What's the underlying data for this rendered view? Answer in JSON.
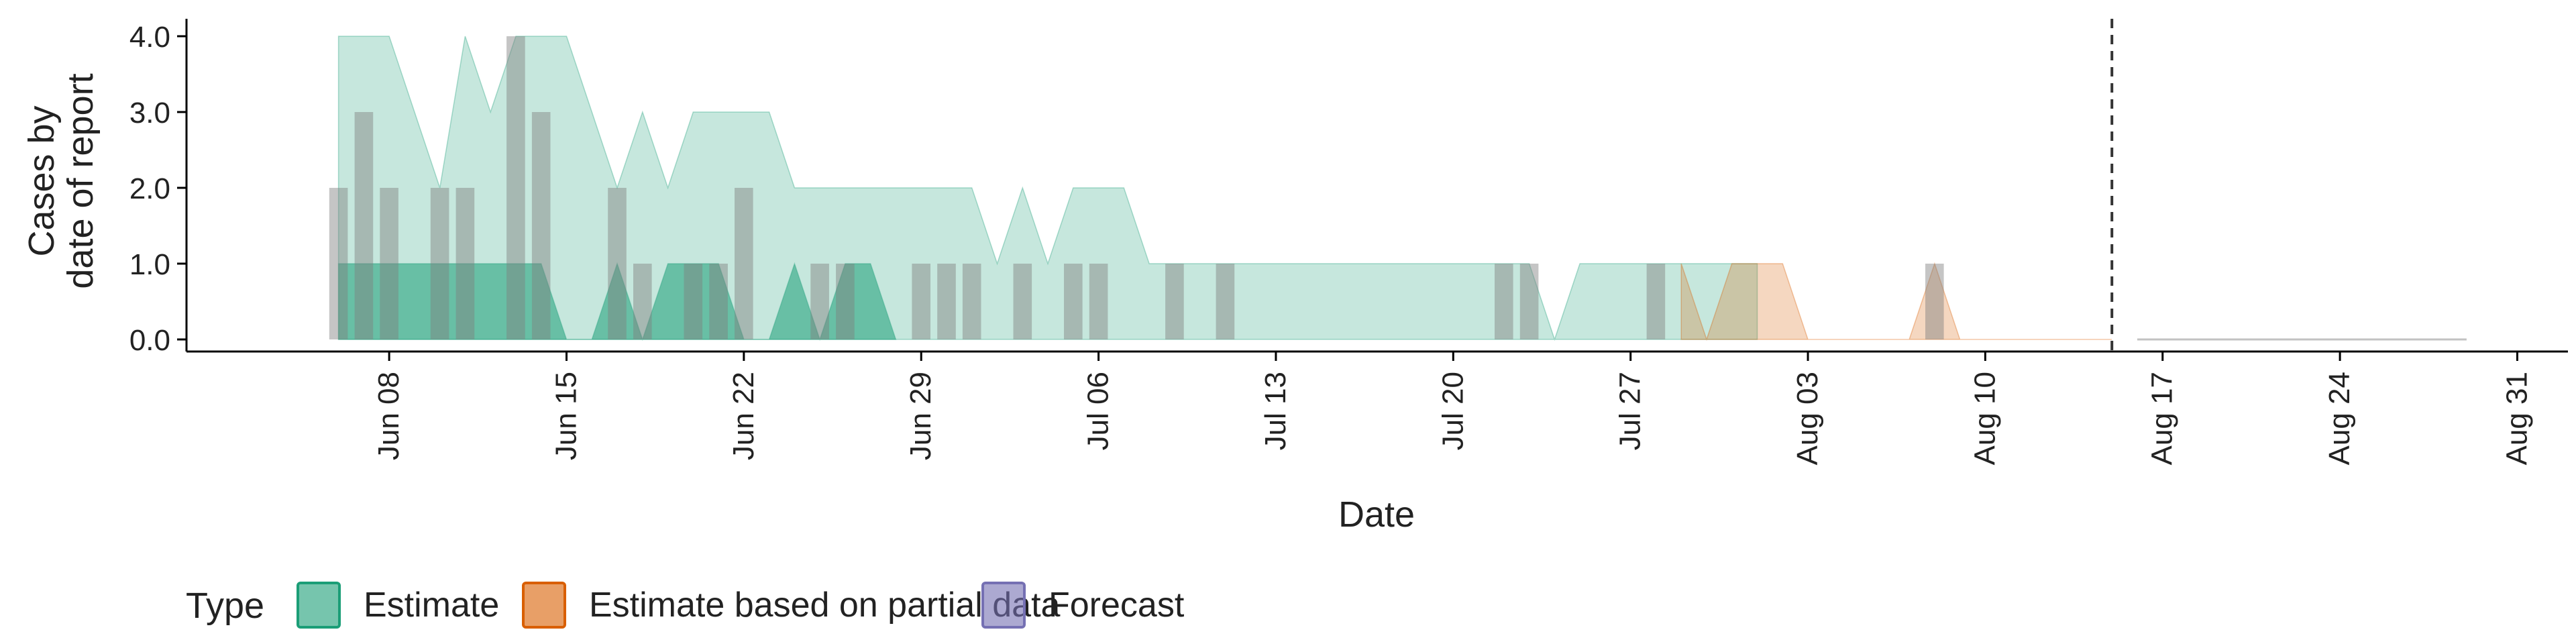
{
  "chart_data": {
    "type": "area",
    "title": "",
    "xlabel": "Date",
    "ylabel_lines": [
      "Cases by",
      "date of report"
    ],
    "x_ticks": [
      "Jun 08",
      "Jun 15",
      "Jun 22",
      "Jun 29",
      "Jul 06",
      "Jul 13",
      "Jul 20",
      "Jul 27",
      "Aug 03",
      "Aug 10",
      "Aug 17",
      "Aug 24",
      "Aug 31"
    ],
    "y_ticks": [
      "0.0",
      "1.0",
      "2.0",
      "3.0",
      "4.0"
    ],
    "ylim": [
      0,
      4
    ],
    "xlim": [
      "2020-05-31",
      "2020-09-02"
    ],
    "vline_date": "2020-08-15",
    "legend": {
      "position": "bottom",
      "title": "Type",
      "items": [
        {
          "label": "Estimate",
          "fill": "#1b9e77",
          "stroke": "#1b9e77"
        },
        {
          "label": "Estimate based on partial data",
          "fill": "#d95f02",
          "stroke": "#d95f02"
        },
        {
          "label": "Forecast",
          "fill": "#7570b3",
          "stroke": "#7570b3"
        }
      ]
    },
    "reported_cases": [
      {
        "date": "2020-06-06",
        "value": 2
      },
      {
        "date": "2020-06-07",
        "value": 3
      },
      {
        "date": "2020-06-08",
        "value": 2
      },
      {
        "date": "2020-06-10",
        "value": 2
      },
      {
        "date": "2020-06-11",
        "value": 2
      },
      {
        "date": "2020-06-13",
        "value": 4
      },
      {
        "date": "2020-06-14",
        "value": 3
      },
      {
        "date": "2020-06-17",
        "value": 2
      },
      {
        "date": "2020-06-18",
        "value": 1
      },
      {
        "date": "2020-06-20",
        "value": 1
      },
      {
        "date": "2020-06-21",
        "value": 1
      },
      {
        "date": "2020-06-22",
        "value": 2
      },
      {
        "date": "2020-06-25",
        "value": 1
      },
      {
        "date": "2020-06-26",
        "value": 1
      },
      {
        "date": "2020-06-29",
        "value": 1
      },
      {
        "date": "2020-06-30",
        "value": 1
      },
      {
        "date": "2020-07-01",
        "value": 1
      },
      {
        "date": "2020-07-03",
        "value": 1
      },
      {
        "date": "2020-07-05",
        "value": 1
      },
      {
        "date": "2020-07-06",
        "value": 1
      },
      {
        "date": "2020-07-09",
        "value": 1
      },
      {
        "date": "2020-07-11",
        "value": 1
      },
      {
        "date": "2020-07-22",
        "value": 1
      },
      {
        "date": "2020-07-23",
        "value": 1
      },
      {
        "date": "2020-07-28",
        "value": 1
      },
      {
        "date": "2020-08-08",
        "value": 1
      }
    ],
    "series": [
      {
        "type_label": "Estimate",
        "color": "#1b9e77",
        "band": "outer",
        "start": "2020-06-06",
        "upper": [
          4,
          4,
          4,
          3,
          2,
          4,
          3,
          4,
          4,
          4,
          3,
          2,
          3,
          2,
          3,
          3,
          3,
          3,
          2,
          2,
          2,
          2,
          2,
          2,
          2,
          2,
          1,
          2,
          1,
          2,
          2,
          2,
          1,
          1,
          1,
          1,
          1,
          1,
          1,
          1,
          1,
          1,
          1,
          1,
          1,
          1,
          1,
          1,
          0,
          1,
          1,
          1,
          1,
          1,
          1,
          1,
          1
        ],
        "lower": [
          0,
          0,
          0,
          0,
          0,
          0,
          0,
          0,
          0,
          0,
          0,
          0,
          0,
          0,
          0,
          0,
          0,
          0,
          0,
          0,
          0,
          0,
          0,
          0,
          0,
          0,
          0,
          0,
          0,
          0,
          0,
          0,
          0,
          0,
          0,
          0,
          0,
          0,
          0,
          0,
          0,
          0,
          0,
          0,
          0,
          0,
          0,
          0,
          0,
          0,
          0,
          0,
          0,
          0,
          0,
          0,
          0
        ]
      },
      {
        "type_label": "Estimate",
        "color": "#1b9e77",
        "band": "inner",
        "start": "2020-06-06",
        "upper": [
          1,
          1,
          1,
          1,
          1,
          1,
          1,
          1,
          1,
          0,
          0,
          1,
          0,
          1,
          1,
          1,
          0,
          0,
          1,
          0,
          1,
          1,
          0
        ],
        "lower": [
          0,
          0,
          0,
          0,
          0,
          0,
          0,
          0,
          0,
          0,
          0,
          0,
          0,
          0,
          0,
          0,
          0,
          0,
          0,
          0,
          0,
          0,
          0
        ]
      },
      {
        "type_label": "Estimate based on partial data",
        "color": "#d95f02",
        "band": "outer",
        "start": "2020-07-29",
        "upper": [
          1,
          0,
          1,
          1,
          1,
          0,
          0,
          0,
          0,
          0,
          1,
          0,
          0,
          0,
          0,
          0,
          0,
          0
        ],
        "lower": [
          0,
          0,
          0,
          0,
          0,
          0,
          0,
          0,
          0,
          0,
          0,
          0,
          0,
          0,
          0,
          0,
          0,
          0
        ]
      },
      {
        "type_label": "Forecast",
        "color": "#7570b3",
        "band": "outer",
        "start": "2020-08-16",
        "upper": [
          0,
          0,
          0,
          0,
          0,
          0,
          0,
          0,
          0,
          0,
          0,
          0,
          0,
          0
        ],
        "lower": [
          0,
          0,
          0,
          0,
          0,
          0,
          0,
          0,
          0,
          0,
          0,
          0,
          0,
          0
        ]
      }
    ]
  }
}
